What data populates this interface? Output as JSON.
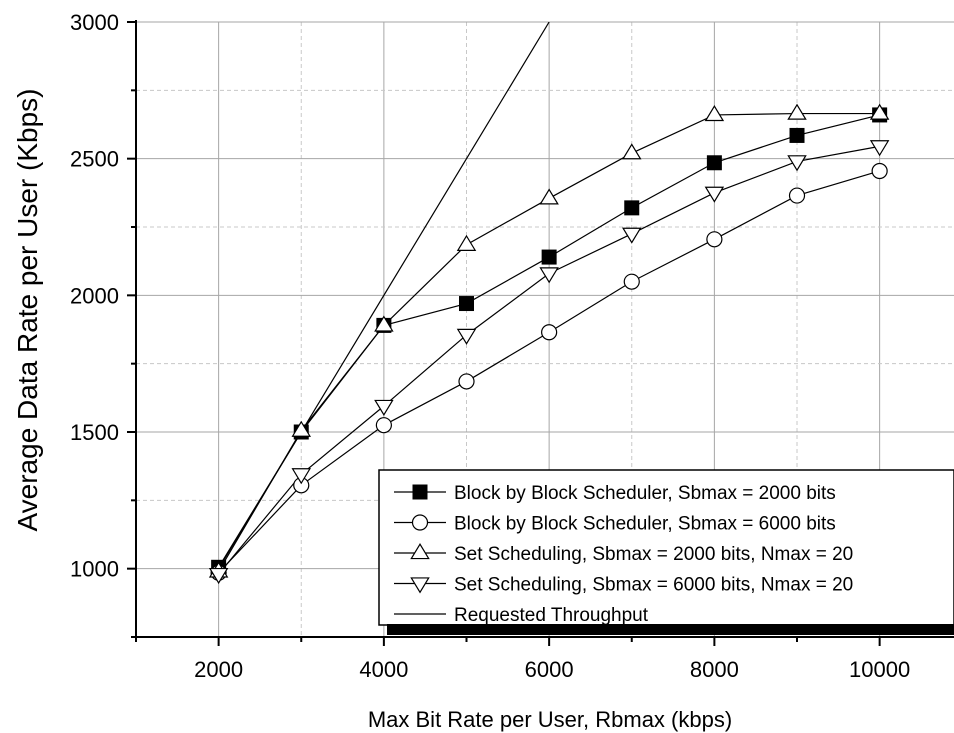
{
  "chart_data": {
    "type": "line",
    "title": "",
    "xlabel": "Max Bit Rate per User, Rbmax (kbps)",
    "ylabel": "Average Data Rate per User (Kbps)",
    "xlim": [
      1000,
      10900
    ],
    "ylim": [
      750,
      3000
    ],
    "x_ticks": [
      2000,
      4000,
      6000,
      8000,
      10000
    ],
    "y_ticks": [
      1000,
      1500,
      2000,
      2500,
      3000
    ],
    "x_tick_labels": [
      "2000",
      "4000",
      "6000",
      "8000",
      "10000"
    ],
    "y_tick_labels": [
      "1000",
      "1500",
      "2000",
      "2500",
      "3000"
    ],
    "grid": true,
    "legend_position": "bottom-right",
    "series": [
      {
        "name": "Block by Block Scheduler, Sbmax = 2000 bits",
        "marker": "filled-square",
        "x": [
          2000,
          3000,
          4000,
          5000,
          6000,
          7000,
          8000,
          9000,
          10000
        ],
        "y": [
          1005,
          1500,
          1890,
          1970,
          2140,
          2320,
          2485,
          2585,
          2660
        ]
      },
      {
        "name": "Block by Block Scheduler, Sbmax = 6000 bits",
        "marker": "open-circle",
        "x": [
          2000,
          3000,
          4000,
          5000,
          6000,
          7000,
          8000,
          9000,
          10000
        ],
        "y": [
          985,
          1305,
          1525,
          1685,
          1865,
          2050,
          2205,
          2365,
          2455
        ]
      },
      {
        "name": "Set Scheduling, Sbmax = 2000 bits, Nmax = 20",
        "marker": "open-triangle-up",
        "x": [
          2000,
          3000,
          4000,
          5000,
          6000,
          7000,
          8000,
          9000,
          10000
        ],
        "y": [
          990,
          1505,
          1890,
          2185,
          2355,
          2520,
          2660,
          2665,
          2665
        ]
      },
      {
        "name": "Set Scheduling, Sbmax = 6000 bits, Nmax = 20",
        "marker": "open-triangle-down",
        "x": [
          2000,
          3000,
          4000,
          5000,
          6000,
          7000,
          8000,
          9000,
          10000
        ],
        "y": [
          980,
          1345,
          1595,
          1855,
          2080,
          2225,
          2375,
          2490,
          2545
        ]
      },
      {
        "name": "Requested Throughput",
        "marker": "none",
        "x": [
          2000,
          6000
        ],
        "y": [
          1000,
          3000
        ]
      }
    ]
  }
}
